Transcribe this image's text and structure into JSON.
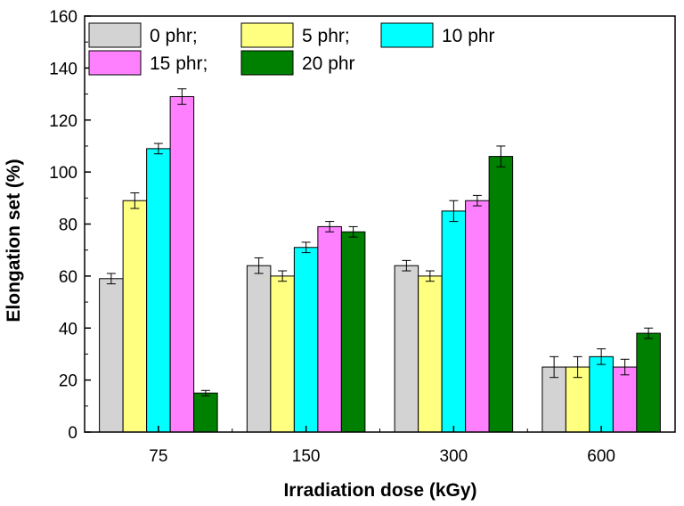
{
  "chart_data": {
    "type": "bar",
    "title": "",
    "xlabel": "Irradiation dose (kGy)",
    "ylabel": "Elongation set (%)",
    "categories": [
      "75",
      "150",
      "300",
      "600"
    ],
    "ylim": [
      0,
      160
    ],
    "yticks": [
      0,
      20,
      40,
      60,
      80,
      100,
      120,
      140,
      160
    ],
    "grid": false,
    "legend_position": "top-left",
    "series": [
      {
        "name": "0 phr;",
        "color": "#d3d3d3",
        "values": [
          59,
          64,
          64,
          25
        ],
        "errors": [
          2,
          3,
          2,
          4
        ]
      },
      {
        "name": "5 phr;",
        "color": "#ffff80",
        "values": [
          89,
          60,
          60,
          25
        ],
        "errors": [
          3,
          2,
          2,
          4
        ]
      },
      {
        "name": "10 phr",
        "color": "#00ffff",
        "values": [
          109,
          71,
          85,
          29
        ],
        "errors": [
          2,
          2,
          4,
          3
        ]
      },
      {
        "name": "15 phr;",
        "color": "#ff80ff",
        "values": [
          129,
          79,
          89,
          25
        ],
        "errors": [
          3,
          2,
          2,
          3
        ]
      },
      {
        "name": "20 phr",
        "color": "#008000",
        "values": [
          15,
          77,
          106,
          38
        ],
        "errors": [
          1,
          2,
          4,
          2
        ]
      }
    ]
  }
}
